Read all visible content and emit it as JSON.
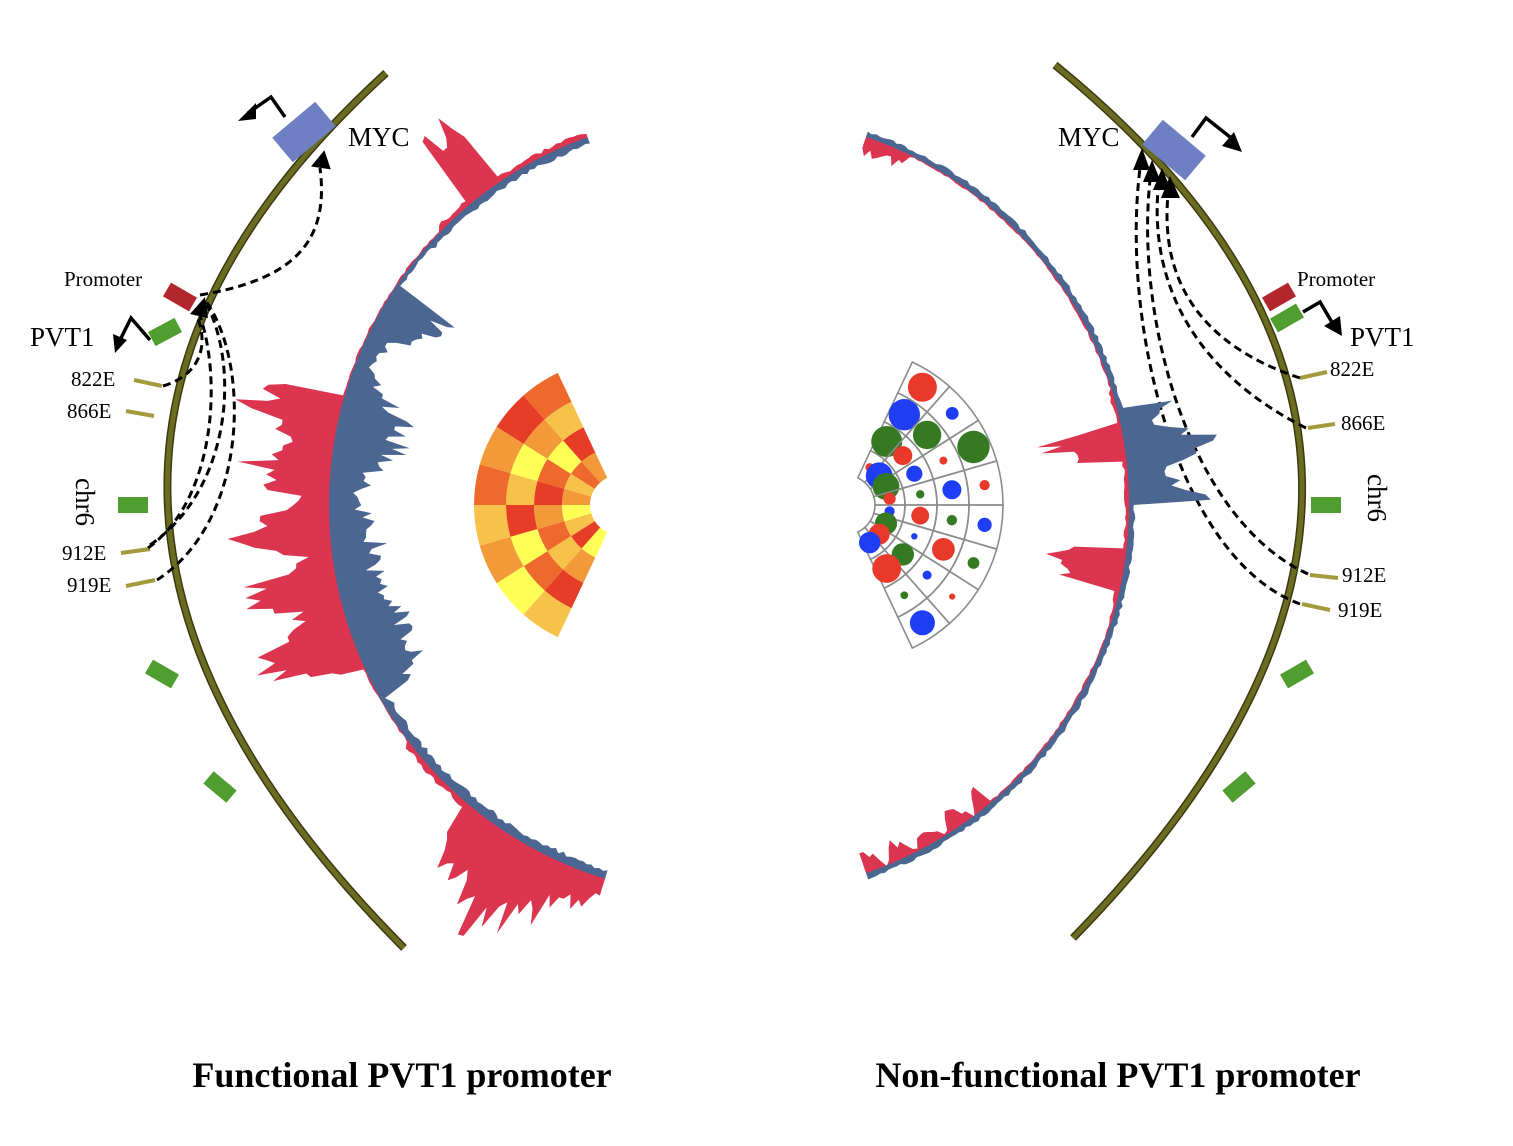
{
  "panels": [
    {
      "caption": "Functional PVT1 promoter",
      "gene_myc": "MYC",
      "gene_pvt1": "PVT1",
      "promoter_label": "Promoter",
      "chrom_label": "chr6",
      "enhancers": [
        "822E",
        "866E",
        "912E",
        "919E"
      ],
      "center_track": "heatmap"
    },
    {
      "caption": "Non-functional PVT1 promoter",
      "gene_myc": "MYC",
      "gene_pvt1": "PVT1",
      "promoter_label": "Promoter",
      "chrom_label": "chr6",
      "enhancers": [
        "822E",
        "866E",
        "912E",
        "919E"
      ],
      "center_track": "bubble-grid"
    }
  ],
  "colors": {
    "chromosome": "#6b6b22",
    "myc_gene": "#6e7fc4",
    "promoter": "#b3262d",
    "exon": "#4f9e2f",
    "enhancer": "#a39a3c",
    "track_blue": "#4a6691",
    "track_red": "#dc3550",
    "heat": [
      "#ffff55",
      "#f7c24a",
      "#f29a3a",
      "#ee6a2c",
      "#e63e26"
    ],
    "bubble": [
      "#e8392b",
      "#1f3df2",
      "#357a22"
    ]
  }
}
